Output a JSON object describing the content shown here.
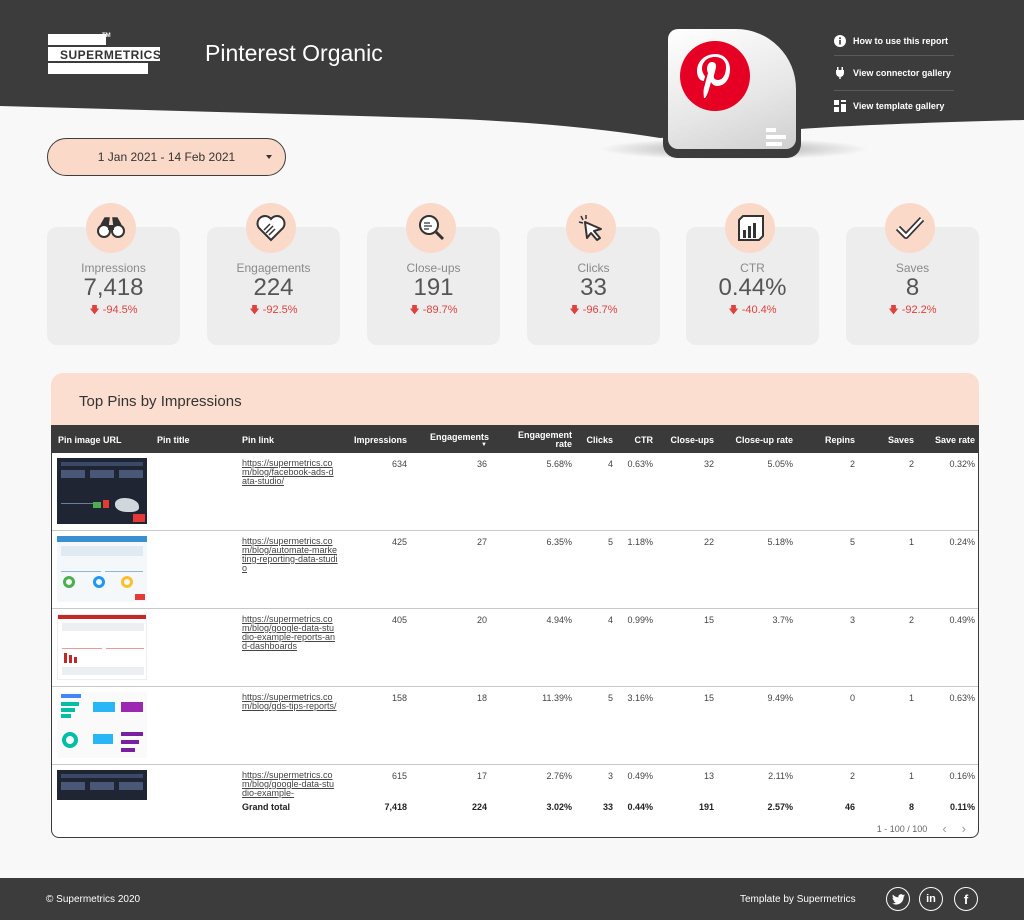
{
  "header": {
    "logo_text": "SUPERMETRICS",
    "logo_tm": "TM",
    "title": "Pinterest Organic",
    "links": [
      {
        "label": "How to use this report",
        "icon": "info-icon"
      },
      {
        "label": "View connector gallery",
        "icon": "plug-icon"
      },
      {
        "label": "View template gallery",
        "icon": "grid-icon"
      }
    ]
  },
  "date_range": "1 Jan 2021 - 14 Feb 2021",
  "kpis": [
    {
      "label": "Impressions",
      "value": "7,418",
      "delta": "-94.5%",
      "icon": "binoculars-icon"
    },
    {
      "label": "Engagements",
      "value": "224",
      "delta": "-92.5%",
      "icon": "heart-icon"
    },
    {
      "label": "Close-ups",
      "value": "191",
      "delta": "-89.7%",
      "icon": "magnifier-icon"
    },
    {
      "label": "Clicks",
      "value": "33",
      "delta": "-96.7%",
      "icon": "cursor-icon"
    },
    {
      "label": "CTR",
      "value": "0.44%",
      "delta": "-40.4%",
      "icon": "bar-chart-icon"
    },
    {
      "label": "Saves",
      "value": "8",
      "delta": "-92.2%",
      "icon": "checkmark-icon"
    }
  ],
  "table": {
    "title": "Top Pins by Impressions",
    "columns": [
      "Pin image URL",
      "Pin title",
      "Pin link",
      "Impressions",
      "Engagements",
      "Engagement rate",
      "Clicks",
      "CTR",
      "Close-ups",
      "Close-up rate",
      "Repins",
      "Saves",
      "Save rate"
    ],
    "rows": [
      {
        "link": "https://supermetrics.com/blog/facebook-ads-data-studio/",
        "impressions": "634",
        "engagements": "36",
        "eng_rate": "5.68%",
        "clicks": "4",
        "ctr": "0.63%",
        "closeups": "32",
        "closeup_rate": "5.05%",
        "repins": "2",
        "saves": "2",
        "save_rate": "0.32%"
      },
      {
        "link": "https://supermetrics.com/blog/automate-marketing-reporting-data-studio",
        "impressions": "425",
        "engagements": "27",
        "eng_rate": "6.35%",
        "clicks": "5",
        "ctr": "1.18%",
        "closeups": "22",
        "closeup_rate": "5.18%",
        "repins": "5",
        "saves": "1",
        "save_rate": "0.24%"
      },
      {
        "link": "https://supermetrics.com/blog/google-data-studio-example-reports-and-dashboards",
        "impressions": "405",
        "engagements": "20",
        "eng_rate": "4.94%",
        "clicks": "4",
        "ctr": "0.99%",
        "closeups": "15",
        "closeup_rate": "3.7%",
        "repins": "3",
        "saves": "2",
        "save_rate": "0.49%"
      },
      {
        "link": "https://supermetrics.com/blog/gds-tips-reports/",
        "impressions": "158",
        "engagements": "18",
        "eng_rate": "11.39%",
        "clicks": "5",
        "ctr": "3.16%",
        "closeups": "15",
        "closeup_rate": "9.49%",
        "repins": "0",
        "saves": "1",
        "save_rate": "0.63%"
      },
      {
        "link": "https://supermetrics.com/blog/google-data-studio-example-",
        "impressions": "615",
        "engagements": "17",
        "eng_rate": "2.76%",
        "clicks": "3",
        "ctr": "0.49%",
        "closeups": "13",
        "closeup_rate": "2.11%",
        "repins": "2",
        "saves": "1",
        "save_rate": "0.16%"
      }
    ],
    "grand_total": {
      "label": "Grand total",
      "impressions": "7,418",
      "engagements": "224",
      "eng_rate": "3.02%",
      "clicks": "33",
      "ctr": "0.44%",
      "closeups": "191",
      "closeup_rate": "2.57%",
      "repins": "46",
      "saves": "8",
      "save_rate": "0.11%"
    },
    "pagination": "1 - 100 / 100"
  },
  "footer": {
    "copyright": "© Supermetrics 2020",
    "template_by": "Template by Supermetrics",
    "social": [
      "twitter-icon",
      "linkedin-icon",
      "facebook-icon"
    ]
  },
  "colors": {
    "dark": "#3c3c3c",
    "peach": "#fbd9c9",
    "delta_red": "#e0413d",
    "pinterest_red": "#e60023"
  }
}
